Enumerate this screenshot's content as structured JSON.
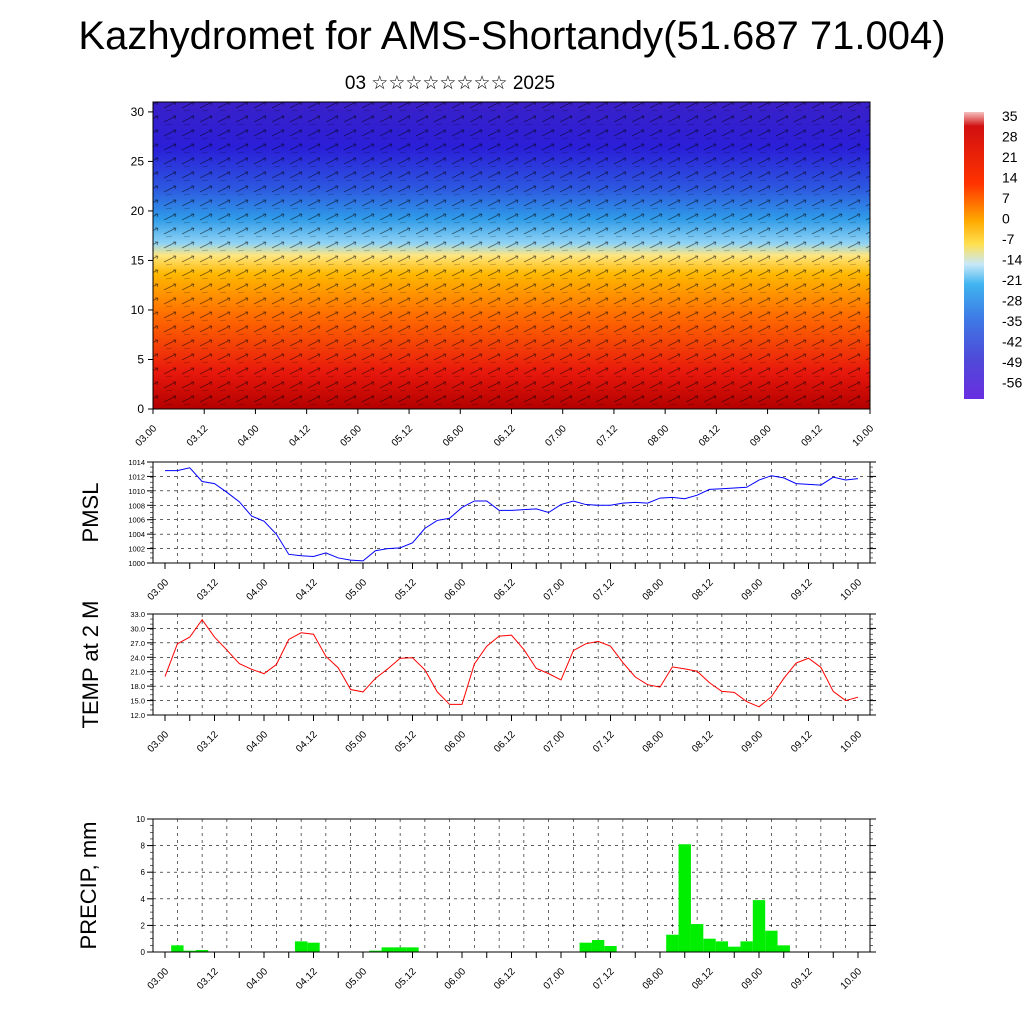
{
  "header": {
    "title": "Kazhydromet for AMS-Shortandy(51.687 71.004)",
    "subtitle": "03 ☆☆☆☆☆☆☆☆ 2025"
  },
  "chart_data": [
    {
      "type": "heatmap",
      "description_of_axes": "time vs level",
      "x_tick_labels": [
        "03.00",
        "03.12",
        "04.00",
        "04.12",
        "05.00",
        "05.12",
        "06.00",
        "06.12",
        "07.00",
        "07.12",
        "08.00",
        "08.12",
        "09.00",
        "09.12",
        "10.00"
      ],
      "y_ticks": [
        0,
        5,
        10,
        15,
        20,
        25,
        30
      ],
      "ylim": [
        0,
        31
      ],
      "colorbar_labels": [
        "35",
        "28",
        "21",
        "14",
        "7",
        "0",
        "-7",
        "-14",
        "-21",
        "-28",
        "-35",
        "-42",
        "-49",
        "-56"
      ],
      "colors": {
        "warm": "#e8180c",
        "mid": "#ffd23a",
        "cool": "#3aa8ee",
        "cold": "#3a1fd8"
      }
    },
    {
      "type": "line",
      "ylabel": "PMSL",
      "ylim": [
        1000,
        1014
      ],
      "y_ticks": [
        "1000",
        "1002",
        "1004",
        "1006",
        "1008",
        "1010",
        "1012",
        "1014"
      ],
      "x_tick_labels": [
        "03.00",
        "03.12",
        "04.00",
        "04.12",
        "05.00",
        "05.12",
        "06.00",
        "06.12",
        "07.00",
        "07.12",
        "08.00",
        "08.12",
        "09.00",
        "09.12",
        "10.00"
      ],
      "color": "#0000ff",
      "values": [
        1012.8,
        1012.8,
        1013.2,
        1011.3,
        1011.0,
        1009.8,
        1008.5,
        1006.5,
        1005.8,
        1004.0,
        1001.2,
        1001.0,
        1000.9,
        1001.4,
        1000.7,
        1000.4,
        1000.3,
        1001.7,
        1002.0,
        1002.1,
        1002.8,
        1004.8,
        1005.9,
        1006.2,
        1007.7,
        1008.6,
        1008.6,
        1007.3,
        1007.3,
        1007.4,
        1007.5,
        1007.0,
        1008.1,
        1008.6,
        1008.1,
        1008.0,
        1008.0,
        1008.3,
        1008.4,
        1008.3,
        1009.0,
        1009.1,
        1008.9,
        1009.4,
        1010.2,
        1010.3,
        1010.4,
        1010.5,
        1011.5,
        1012.1,
        1011.8,
        1011.0,
        1010.9,
        1010.8,
        1011.9,
        1011.5,
        1011.7
      ]
    },
    {
      "type": "line",
      "ylabel": "TEMP at 2 M",
      "ylim": [
        12,
        33
      ],
      "y_ticks": [
        "12.0",
        "15.0",
        "18.0",
        "21.0",
        "24.0",
        "27.0",
        "30.0",
        "33.0"
      ],
      "x_tick_labels": [
        "03.00",
        "03.12",
        "04.00",
        "04.12",
        "05.00",
        "05.12",
        "06.00",
        "06.12",
        "07.00",
        "07.12",
        "08.00",
        "08.12",
        "09.00",
        "09.12",
        "10.00"
      ],
      "color": "#ff0000",
      "values": [
        20.0,
        26.8,
        28.2,
        31.8,
        28.2,
        25.5,
        22.7,
        21.5,
        20.6,
        22.5,
        27.7,
        29.1,
        28.8,
        24.2,
        21.8,
        17.3,
        16.8,
        19.6,
        21.6,
        23.8,
        23.9,
        21.4,
        16.8,
        14.2,
        14.2,
        22.6,
        26.3,
        28.4,
        28.6,
        25.6,
        21.7,
        20.6,
        19.3,
        25.4,
        26.8,
        27.3,
        26.3,
        22.9,
        19.9,
        18.3,
        17.8,
        22.0,
        21.6,
        21.1,
        18.7,
        16.9,
        16.7,
        14.8,
        13.7,
        15.8,
        19.6,
        22.8,
        23.8,
        21.9,
        16.9,
        15.0,
        15.7
      ]
    },
    {
      "type": "bar",
      "ylabel": "PRECIP, mm",
      "ylim": [
        0,
        10
      ],
      "y_ticks": [
        "0",
        "2",
        "4",
        "6",
        "8",
        "10"
      ],
      "x_tick_labels": [
        "03.00",
        "03.12",
        "04.00",
        "04.12",
        "05.00",
        "05.12",
        "06.00",
        "06.12",
        "07.00",
        "07.12",
        "08.00",
        "08.12",
        "09.00",
        "09.12",
        "10.00"
      ],
      "color": "#00ee00",
      "values": [
        0,
        0.5,
        0.1,
        0.15,
        0,
        0,
        0,
        0,
        0,
        0,
        0,
        0.8,
        0.7,
        0,
        0,
        0,
        0,
        0.1,
        0.35,
        0.35,
        0.35,
        0,
        0,
        0,
        0,
        0,
        0,
        0,
        0,
        0,
        0,
        0,
        0,
        0,
        0.7,
        0.9,
        0.45,
        0,
        0,
        0,
        0,
        1.3,
        8.1,
        2.1,
        1.0,
        0.8,
        0.4,
        0.8,
        3.9,
        1.6,
        0.5,
        0,
        0,
        0,
        0,
        0,
        0
      ]
    }
  ]
}
